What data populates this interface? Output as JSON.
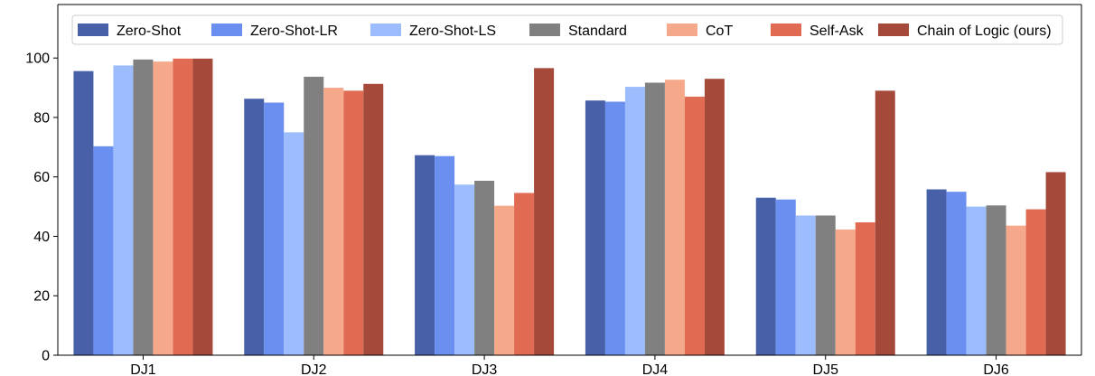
{
  "chart_data": {
    "type": "bar",
    "title": "",
    "xlabel": "",
    "ylabel": "",
    "categories": [
      "DJ1",
      "DJ2",
      "DJ3",
      "DJ4",
      "DJ5",
      "DJ6"
    ],
    "ylim": [
      0,
      118
    ],
    "yticks": [
      0,
      20,
      40,
      60,
      80,
      100
    ],
    "grid": false,
    "legend_position": "top",
    "series": [
      {
        "name": "Zero-Shot",
        "color": "#4760a8",
        "values": [
          95.6,
          86.3,
          67.3,
          85.7,
          53.0,
          55.8
        ]
      },
      {
        "name": "Zero-Shot-LR",
        "color": "#6a8ff0",
        "values": [
          70.3,
          85.0,
          67.0,
          85.3,
          52.4,
          55.0
        ]
      },
      {
        "name": "Zero-Shot-LS",
        "color": "#9dbcfd",
        "values": [
          97.5,
          75.0,
          57.4,
          90.3,
          47.0,
          50.0
        ]
      },
      {
        "name": "Standard",
        "color": "#808080",
        "values": [
          99.5,
          93.7,
          58.7,
          91.7,
          47.0,
          50.4
        ]
      },
      {
        "name": "CoT",
        "color": "#f6a98a",
        "values": [
          98.8,
          90.0,
          50.3,
          92.7,
          42.3,
          43.6
        ]
      },
      {
        "name": "Self-Ask",
        "color": "#e16a53",
        "values": [
          99.8,
          89.0,
          54.6,
          87.0,
          44.7,
          49.1
        ]
      },
      {
        "name": "Chain of Logic (ours)",
        "color": "#a5493a",
        "values": [
          99.8,
          91.3,
          96.6,
          93.0,
          89.0,
          61.6
        ]
      }
    ]
  }
}
